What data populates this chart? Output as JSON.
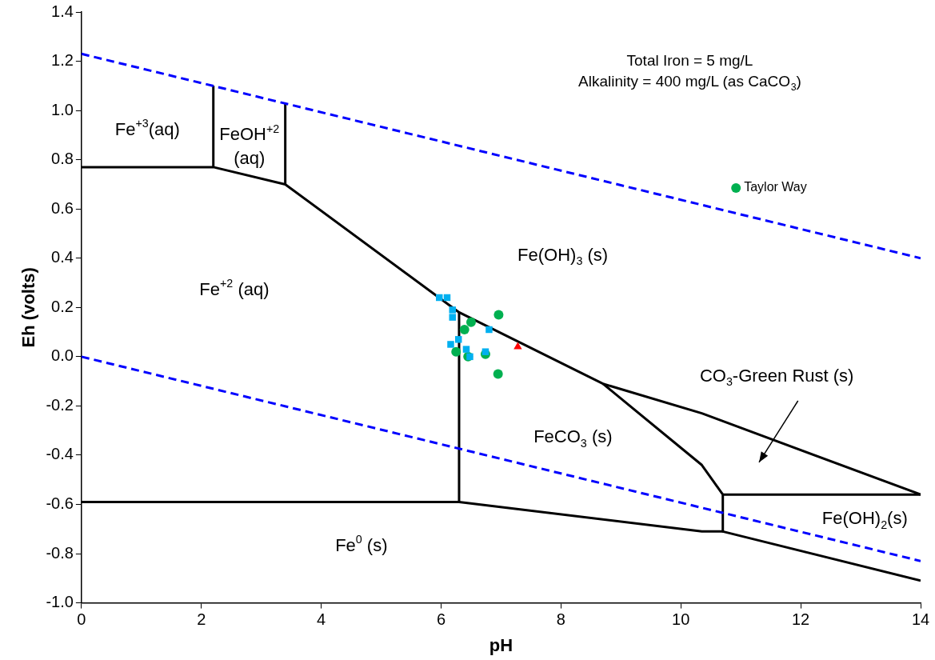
{
  "chart_data": {
    "type": "scatter",
    "xlabel": "pH",
    "ylabel": "Eh (volts)",
    "xlim": [
      0,
      14
    ],
    "xticks": [
      0,
      2,
      4,
      6,
      8,
      10,
      12,
      14
    ],
    "ylim": [
      -1.0,
      1.4
    ],
    "yticks": [
      {
        "value": -1.0,
        "label": "-1.0"
      },
      {
        "value": -0.8,
        "label": "-0.8"
      },
      {
        "value": -0.6,
        "label": "-0.6"
      },
      {
        "value": -0.4,
        "label": "-0.4"
      },
      {
        "value": -0.2,
        "label": "-0.2"
      },
      {
        "value": 0,
        "label": "0.0"
      },
      {
        "value": 0.2,
        "label": "0.2"
      },
      {
        "value": 0.4,
        "label": "0.4"
      },
      {
        "value": 0.6,
        "label": "0.6"
      },
      {
        "value": 0.8,
        "label": "0.8"
      },
      {
        "value": 1.0,
        "label": "1.0"
      },
      {
        "value": 1.2,
        "label": "1.2"
      },
      {
        "value": 1.4,
        "label": "1.4"
      }
    ],
    "grid": false,
    "legend": "top right",
    "series": [
      {
        "type": "line",
        "color": "#0000ff",
        "line_style": "dashed",
        "marker": "none",
        "x": [
          0,
          14
        ],
        "values": [
          1.23,
          0.4
        ]
      },
      {
        "type": "line",
        "color": "#0000ff",
        "line_style": "dashed",
        "marker": "none",
        "x": [
          0,
          14
        ],
        "values": [
          0,
          -0.83
        ]
      },
      {
        "type": "line",
        "color": "#000000",
        "line_style": "solid",
        "marker": "none",
        "x": [
          0,
          2.2,
          3.4,
          6.3,
          8.7,
          10.35,
          14
        ],
        "values": [
          0.77,
          0.77,
          0.7,
          0.18,
          -0.11,
          -0.23,
          -0.56
        ]
      },
      {
        "type": "line",
        "color": "#000000",
        "line_style": "solid",
        "marker": "none",
        "x": [
          2.2,
          2.2
        ],
        "values": [
          0.77,
          1.1
        ]
      },
      {
        "type": "line",
        "color": "#000000",
        "line_style": "solid",
        "marker": "none",
        "x": [
          3.4,
          3.4
        ],
        "values": [
          0.7,
          1.03
        ]
      },
      {
        "type": "line",
        "color": "#000000",
        "line_style": "solid",
        "marker": "none",
        "x": [
          6.3,
          6.3
        ],
        "values": [
          0.18,
          -0.59
        ]
      },
      {
        "type": "line",
        "color": "#000000",
        "line_style": "solid",
        "marker": "none",
        "x": [
          0,
          6.3,
          10.35,
          10.7,
          14
        ],
        "values": [
          -0.59,
          -0.59,
          -0.71,
          -0.71,
          -0.91
        ]
      },
      {
        "type": "line",
        "color": "#000000",
        "line_style": "solid",
        "marker": "none",
        "x": [
          8.7,
          10.35,
          10.7,
          10.7
        ],
        "values": [
          -0.11,
          -0.44,
          -0.56,
          -0.71
        ]
      },
      {
        "type": "line",
        "color": "#000000",
        "line_style": "solid",
        "marker": "none",
        "x": [
          10.7,
          14
        ],
        "values": [
          -0.56,
          -0.56
        ]
      },
      {
        "color": "#ff0000",
        "marker": "triangle",
        "x": [
          7.28
        ],
        "values": [
          0.04
        ]
      },
      {
        "color": "#00b0f0",
        "marker": "square",
        "x": [
          5.97,
          6.1,
          6.19,
          6.19,
          6.29,
          6.16,
          6.42,
          6.48,
          6.8,
          6.74
        ],
        "values": [
          0.24,
          0.24,
          0.19,
          0.16,
          0.07,
          0.05,
          0.03,
          0.0,
          0.11,
          0.02
        ]
      },
      {
        "name": "Taylor Way",
        "color": "#00b050",
        "marker": "circle",
        "x": [
          6.96,
          6.5,
          6.39,
          6.25,
          6.45,
          6.74,
          6.95
        ],
        "values": [
          0.17,
          0.14,
          0.11,
          0.02,
          0.0,
          0.01,
          -0.07
        ]
      }
    ],
    "annotations": [
      "Total Iron = 5 mg/L",
      "Alkalinity = 400 mg/L (as CaCO$_{3}$)",
      "Fe$^{+3}$(aq)",
      "FeOH$^{+2}$\n(aq)",
      "Fe$^{+2}$ (aq)",
      "Fe(OH)$_{3}$ (s)",
      "FeCO$_{3}$ (s)",
      "CO$_{3}$-Green Rust (s)",
      "Fe(OH)$_{2}$(s)",
      "Fe$^{0}$ (s)"
    ]
  }
}
